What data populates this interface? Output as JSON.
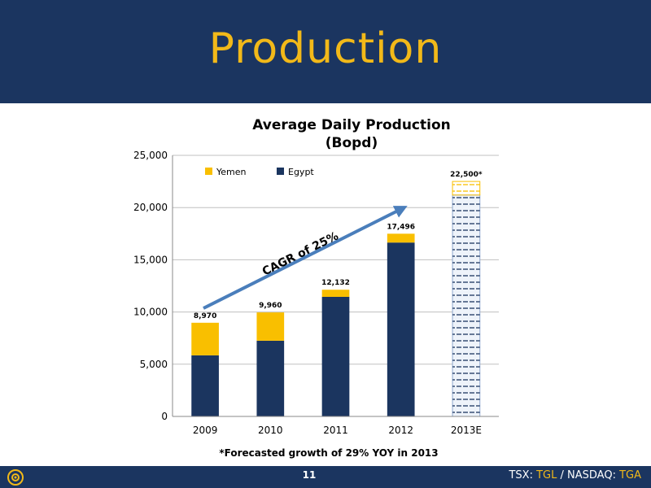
{
  "slide": {
    "title": "Production",
    "page_number": "11",
    "footer": {
      "prefix1": "TSX: ",
      "ticker1": "TGL",
      "sep": " / ",
      "prefix2": "NASDAQ: ",
      "ticker2": "TGA"
    }
  },
  "colors": {
    "header": "#1b3560",
    "title": "#f2b919",
    "yemen": "#f9bf00",
    "egypt": "#1b355f",
    "arrow": "#4a7ebb"
  },
  "chart_data": {
    "type": "bar",
    "stacked": true,
    "title": "Average Daily Production",
    "subtitle": "(Bopd)",
    "categories": [
      "2009",
      "2010",
      "2011",
      "2012",
      "2013E"
    ],
    "series": [
      {
        "name": "Egypt",
        "values": [
          5850,
          7250,
          11450,
          16650,
          21200
        ]
      },
      {
        "name": "Yemen",
        "values": [
          3120,
          2710,
          682,
          846,
          1300
        ]
      }
    ],
    "totals": [
      "8,970",
      "9,960",
      "12,132",
      "17,496",
      "22,500*"
    ],
    "forecast_category": "2013E",
    "ylim": [
      0,
      25000
    ],
    "yticks": [
      "0",
      "5,000",
      "10,000",
      "15,000",
      "20,000",
      "25,000"
    ],
    "ytick_values": [
      0,
      5000,
      10000,
      15000,
      20000,
      25000
    ],
    "grid": true,
    "legend_position": "top-left",
    "annotation": "CAGR of 25%",
    "footnote": "*Forecasted growth of 29% YOY in 2013"
  }
}
